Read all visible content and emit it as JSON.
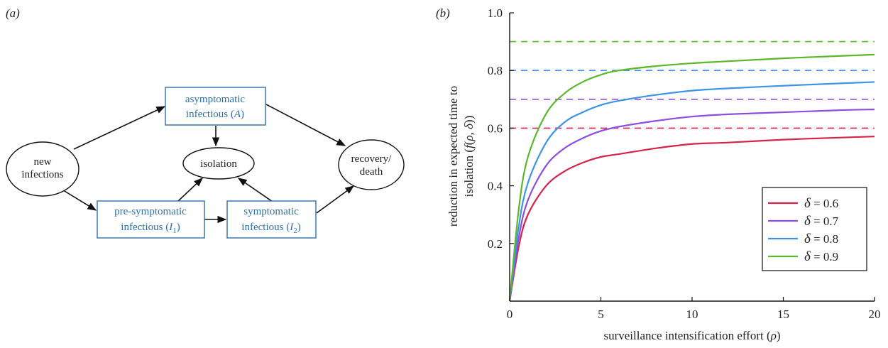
{
  "panel_a": {
    "label": "(a)",
    "nodes": {
      "new_infections": [
        "new",
        "infections"
      ],
      "isolation": [
        "isolation"
      ],
      "recovery_death": [
        "recovery/",
        "death"
      ],
      "asymptomatic": [
        "asymptomatic",
        "infectious (",
        "A",
        ")"
      ],
      "pre_symptomatic": [
        "pre-symptomatic",
        "infectious (",
        "I",
        "1",
        ")"
      ],
      "symptomatic": [
        "symptomatic",
        "infectious (",
        "I",
        "2",
        ")"
      ]
    },
    "colors": {
      "box_text": "#2f6fa8",
      "box_border": "#2f6fa8"
    }
  },
  "panel_b": {
    "label": "(b)",
    "chart_data": {
      "type": "line",
      "xlabel": [
        "surveillance intensification effort (",
        "ρ",
        ")"
      ],
      "ylabel": [
        "reduction in expected time to",
        "isolation (",
        "f",
        "(",
        "ρ",
        ", ",
        "δ",
        "))"
      ],
      "xlim": [
        0,
        20
      ],
      "ylim": [
        0,
        1.0
      ],
      "xticks": [
        {
          "value": 0,
          "label": "0"
        },
        {
          "value": 5,
          "label": "5"
        },
        {
          "value": 10,
          "label": "10"
        },
        {
          "value": 15,
          "label": "15"
        },
        {
          "value": 20,
          "label": "20"
        }
      ],
      "yticks": [
        {
          "value": 0.2,
          "label": "0.2"
        },
        {
          "value": 0.4,
          "label": "0.4"
        },
        {
          "value": 0.6,
          "label": "0.6"
        },
        {
          "value": 0.8,
          "label": "0.8"
        },
        {
          "value": 1.0,
          "label": "1.0"
        }
      ],
      "x": [
        0,
        0.5,
        1,
        2,
        3,
        4,
        5,
        6,
        8,
        10,
        12,
        15,
        18,
        20
      ],
      "series": [
        {
          "name": "δ = 0.6",
          "delta": 0.6,
          "color": "#d6234a",
          "values": [
            0,
            0.19,
            0.3,
            0.4,
            0.45,
            0.48,
            0.5,
            0.51,
            0.53,
            0.545,
            0.55,
            0.56,
            0.567,
            0.571
          ]
        },
        {
          "name": "δ = 0.7",
          "delta": 0.7,
          "color": "#8a4fe0",
          "values": [
            0,
            0.22,
            0.35,
            0.47,
            0.53,
            0.565,
            0.59,
            0.605,
            0.625,
            0.64,
            0.648,
            0.655,
            0.662,
            0.665
          ]
        },
        {
          "name": "δ = 0.8",
          "delta": 0.8,
          "color": "#3d94e6",
          "values": [
            0,
            0.26,
            0.41,
            0.55,
            0.62,
            0.655,
            0.68,
            0.695,
            0.715,
            0.73,
            0.738,
            0.747,
            0.755,
            0.76
          ]
        },
        {
          "name": "δ = 0.9",
          "delta": 0.9,
          "color": "#5cb82a",
          "values": [
            0,
            0.32,
            0.5,
            0.65,
            0.72,
            0.76,
            0.785,
            0.8,
            0.815,
            0.825,
            0.832,
            0.842,
            0.85,
            0.855
          ]
        }
      ],
      "asymptotes": [
        0.6,
        0.7,
        0.8,
        0.9
      ],
      "legend_position": "bottom-right",
      "legend_labels": [
        {
          "symbol": "δ",
          "text": " = 0.6"
        },
        {
          "symbol": "δ",
          "text": " = 0.7"
        },
        {
          "symbol": "δ",
          "text": " = 0.8"
        },
        {
          "symbol": "δ",
          "text": " = 0.9"
        }
      ]
    }
  }
}
